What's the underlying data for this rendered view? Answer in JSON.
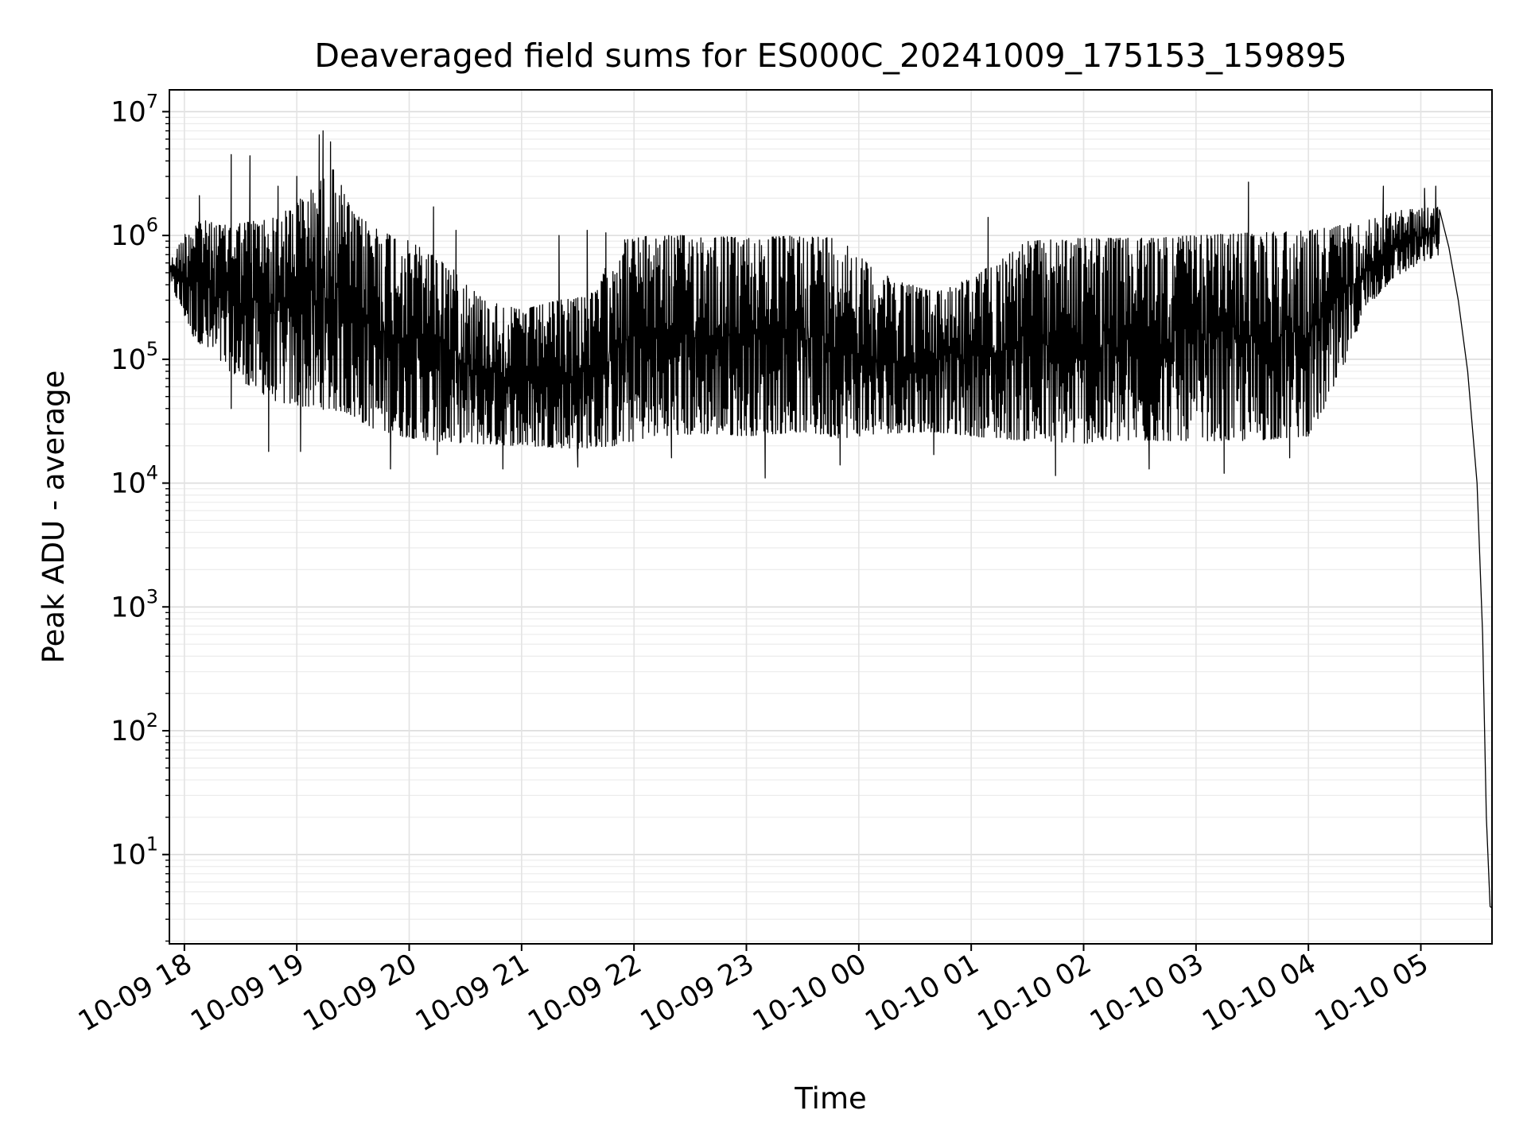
{
  "chart_data": {
    "type": "line",
    "title": "Deaveraged field sums for ES000C_20241009_175153_159895",
    "xlabel": "Time",
    "ylabel": "Peak ADU - average",
    "yscale": "log",
    "ylim": [
      1.9,
      15000000
    ],
    "xlim": [
      "2024-10-09 17:52",
      "2024-10-10 05:38"
    ],
    "grid": true,
    "series_color": "#000000",
    "x_ticks": [
      {
        "value": "2024-10-09 18:00",
        "label": "10-09 18"
      },
      {
        "value": "2024-10-09 19:00",
        "label": "10-09 19"
      },
      {
        "value": "2024-10-09 20:00",
        "label": "10-09 20"
      },
      {
        "value": "2024-10-09 21:00",
        "label": "10-09 21"
      },
      {
        "value": "2024-10-09 22:00",
        "label": "10-09 22"
      },
      {
        "value": "2024-10-09 23:00",
        "label": "10-09 23"
      },
      {
        "value": "2024-10-10 00:00",
        "label": "10-10 00"
      },
      {
        "value": "2024-10-10 01:00",
        "label": "10-10 01"
      },
      {
        "value": "2024-10-10 02:00",
        "label": "10-10 02"
      },
      {
        "value": "2024-10-10 03:00",
        "label": "10-10 03"
      },
      {
        "value": "2024-10-10 04:00",
        "label": "10-10 04"
      },
      {
        "value": "2024-10-10 05:00",
        "label": "10-10 05"
      }
    ],
    "y_ticks": [
      {
        "value": 10,
        "base": "10",
        "exp": "1"
      },
      {
        "value": 100,
        "base": "10",
        "exp": "2"
      },
      {
        "value": 1000,
        "base": "10",
        "exp": "3"
      },
      {
        "value": 10000,
        "base": "10",
        "exp": "4"
      },
      {
        "value": 100000,
        "base": "10",
        "exp": "5"
      },
      {
        "value": 1000000,
        "base": "10",
        "exp": "6"
      },
      {
        "value": 10000000,
        "base": "10",
        "exp": "7"
      }
    ],
    "series": [
      {
        "low": [
          [
            "2024-10-09 17:52",
            420000
          ],
          [
            "2024-10-09 18:05",
            150000
          ],
          [
            "2024-10-09 18:20",
            90000
          ],
          [
            "2024-10-09 18:35",
            60000
          ],
          [
            "2024-10-09 18:50",
            45000
          ],
          [
            "2024-10-09 19:10",
            40000
          ],
          [
            "2024-10-09 19:25",
            38000
          ],
          [
            "2024-10-09 19:40",
            28000
          ],
          [
            "2024-10-09 19:55",
            24000
          ],
          [
            "2024-10-09 20:10",
            22000
          ],
          [
            "2024-10-09 20:30",
            21000
          ],
          [
            "2024-10-09 21:00",
            20000
          ],
          [
            "2024-10-09 21:30",
            19000
          ],
          [
            "2024-10-09 21:50",
            20000
          ],
          [
            "2024-10-09 22:10",
            24000
          ],
          [
            "2024-10-09 22:40",
            25000
          ],
          [
            "2024-10-09 23:00",
            24000
          ],
          [
            "2024-10-09 23:30",
            26000
          ],
          [
            "2024-10-09 23:50",
            23000
          ],
          [
            "2024-10-10 00:10",
            25000
          ],
          [
            "2024-10-10 00:40",
            26000
          ],
          [
            "2024-10-10 01:00",
            24000
          ],
          [
            "2024-10-10 01:30",
            22000
          ],
          [
            "2024-10-10 02:00",
            21000
          ],
          [
            "2024-10-10 02:30",
            22000
          ],
          [
            "2024-10-10 03:00",
            22000
          ],
          [
            "2024-10-10 03:30",
            22000
          ],
          [
            "2024-10-10 04:00",
            24000
          ],
          [
            "2024-10-10 04:15",
            60000
          ],
          [
            "2024-10-10 04:30",
            250000
          ],
          [
            "2024-10-10 04:45",
            450000
          ],
          [
            "2024-10-10 05:00",
            600000
          ],
          [
            "2024-10-10 05:10",
            700000
          ]
        ],
        "high": [
          [
            "2024-10-09 17:52",
            600000
          ],
          [
            "2024-10-09 18:05",
            1400000
          ],
          [
            "2024-10-09 18:20",
            1200000
          ],
          [
            "2024-10-09 18:35",
            1300000
          ],
          [
            "2024-10-09 18:50",
            1400000
          ],
          [
            "2024-10-09 19:10",
            2500000
          ],
          [
            "2024-10-09 19:20",
            3500000
          ],
          [
            "2024-10-09 19:30",
            1500000
          ],
          [
            "2024-10-09 19:45",
            1100000
          ],
          [
            "2024-10-09 20:00",
            900000
          ],
          [
            "2024-10-09 20:20",
            600000
          ],
          [
            "2024-10-09 20:40",
            300000
          ],
          [
            "2024-10-09 21:00",
            250000
          ],
          [
            "2024-10-09 21:20",
            300000
          ],
          [
            "2024-10-09 21:40",
            350000
          ],
          [
            "2024-10-09 21:50",
            900000
          ],
          [
            "2024-10-09 22:10",
            1000000
          ],
          [
            "2024-10-09 22:40",
            1000000
          ],
          [
            "2024-10-09 23:00",
            950000
          ],
          [
            "2024-10-09 23:30",
            1000000
          ],
          [
            "2024-10-09 23:50",
            950000
          ],
          [
            "2024-10-10 00:10",
            500000
          ],
          [
            "2024-10-10 00:40",
            350000
          ],
          [
            "2024-10-10 01:00",
            450000
          ],
          [
            "2024-10-10 01:30",
            900000
          ],
          [
            "2024-10-10 02:00",
            950000
          ],
          [
            "2024-10-10 02:30",
            950000
          ],
          [
            "2024-10-10 03:00",
            1000000
          ],
          [
            "2024-10-10 03:30",
            1050000
          ],
          [
            "2024-10-10 04:00",
            1100000
          ],
          [
            "2024-10-10 04:30",
            1300000
          ],
          [
            "2024-10-10 04:50",
            1600000
          ],
          [
            "2024-10-10 05:10",
            1700000
          ]
        ],
        "spikes": [
          [
            "2024-10-09 18:08",
            2100000
          ],
          [
            "2024-10-09 18:25",
            4500000
          ],
          [
            "2024-10-09 18:35",
            4400000
          ],
          [
            "2024-10-09 18:50",
            2500000
          ],
          [
            "2024-10-09 19:00",
            3000000
          ],
          [
            "2024-10-09 19:12",
            6500000
          ],
          [
            "2024-10-09 19:14",
            7000000
          ],
          [
            "2024-10-09 19:18",
            5700000
          ],
          [
            "2024-10-09 20:13",
            1700000
          ],
          [
            "2024-10-09 20:25",
            1100000
          ],
          [
            "2024-10-09 21:20",
            1000000
          ],
          [
            "2024-10-09 21:35",
            1100000
          ],
          [
            "2024-10-09 21:45",
            1050000
          ],
          [
            "2024-10-10 01:09",
            1400000
          ],
          [
            "2024-10-10 03:28",
            2700000
          ],
          [
            "2024-10-10 04:40",
            2500000
          ],
          [
            "2024-10-10 05:02",
            2400000
          ],
          [
            "2024-10-10 05:08",
            2500000
          ]
        ],
        "dips": [
          [
            "2024-10-09 18:25",
            40000
          ],
          [
            "2024-10-09 18:45",
            18000
          ],
          [
            "2024-10-09 19:02",
            18000
          ],
          [
            "2024-10-09 19:50",
            13000
          ],
          [
            "2024-10-09 20:15",
            17000
          ],
          [
            "2024-10-09 20:50",
            13000
          ],
          [
            "2024-10-09 21:30",
            13500
          ],
          [
            "2024-10-09 22:20",
            16000
          ],
          [
            "2024-10-09 23:10",
            11000
          ],
          [
            "2024-10-09 23:50",
            14000
          ],
          [
            "2024-10-10 00:40",
            17000
          ],
          [
            "2024-10-10 01:45",
            11500
          ],
          [
            "2024-10-10 02:35",
            13000
          ],
          [
            "2024-10-10 03:15",
            12000
          ],
          [
            "2024-10-10 03:50",
            16000
          ]
        ],
        "tail": [
          [
            "2024-10-10 05:10",
            1600000
          ],
          [
            "2024-10-10 05:15",
            800000
          ],
          [
            "2024-10-10 05:20",
            300000
          ],
          [
            "2024-10-10 05:25",
            80000
          ],
          [
            "2024-10-10 05:30",
            10000
          ],
          [
            "2024-10-10 05:33",
            600
          ],
          [
            "2024-10-10 05:35",
            20
          ],
          [
            "2024-10-10 05:37",
            3.8
          ],
          [
            "2024-10-10 05:38",
            3.7
          ]
        ]
      }
    ]
  }
}
